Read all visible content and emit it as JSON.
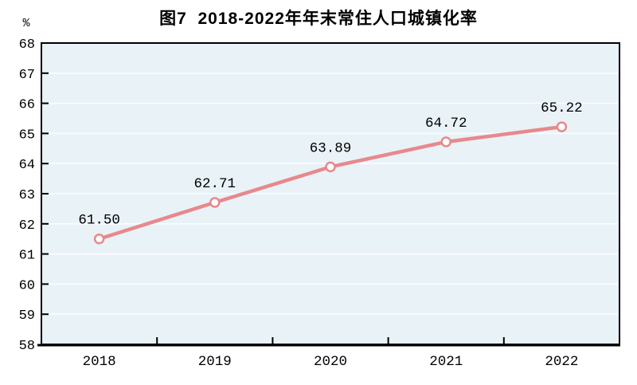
{
  "title": "图7  2018-2022年年末常住人口城镇化率",
  "chart_data": {
    "type": "line",
    "title": "图7  2018-2022年年末常住人口城镇化率",
    "categories": [
      "2018",
      "2019",
      "2020",
      "2021",
      "2022"
    ],
    "series": [
      {
        "name": "年末常住人口城镇化率",
        "values": [
          61.5,
          62.71,
          63.89,
          64.72,
          65.22
        ]
      }
    ],
    "point_labels": [
      "61.50",
      "62.71",
      "63.89",
      "64.72",
      "65.22"
    ],
    "xlabel": "",
    "ylabel": "%",
    "ylim": [
      58,
      68
    ],
    "yticks": [
      58,
      59,
      60,
      61,
      62,
      63,
      64,
      65,
      66,
      67,
      68
    ],
    "grid": "horizontal",
    "legend": "none",
    "colors": {
      "line": "#e7898c",
      "marker_fill": "#ffffff",
      "marker_stroke": "#e7898c",
      "plot_background": "#e9f2f7",
      "gridline": "#fbfdff",
      "axis": "#000000",
      "text": "#000000"
    }
  }
}
